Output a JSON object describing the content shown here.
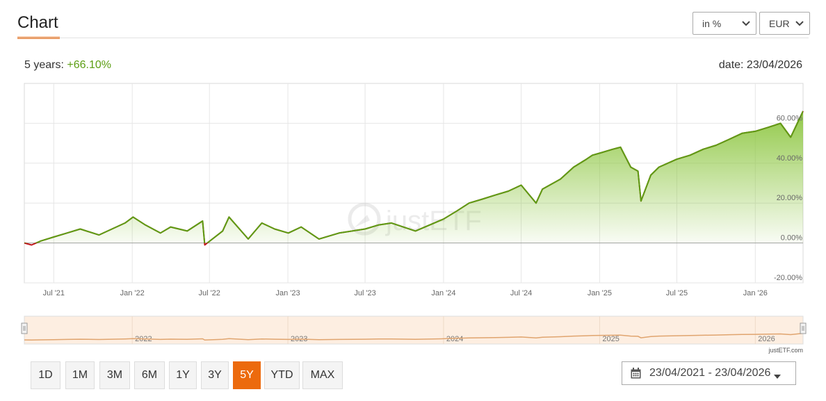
{
  "header": {
    "title": "Chart"
  },
  "controls": {
    "mode_select": "in %",
    "currency_select": "EUR"
  },
  "summary": {
    "period_label": "5 years:",
    "performance": "+66.10%",
    "date_text": "date: 23/04/2026"
  },
  "watermark": "justETF",
  "credit": "justETF.com",
  "range_buttons": [
    "1D",
    "1M",
    "3M",
    "6M",
    "1Y",
    "3Y",
    "5Y",
    "YTD",
    "MAX"
  ],
  "active_range": "5Y",
  "date_range": {
    "text": "23/04/2021 - 23/04/2026"
  },
  "icons": {
    "select_chevron": "chevron-down-icon",
    "calendar": "calendar-icon",
    "caret": "caret-down-icon",
    "watermark_logo": "justetf-logo-icon",
    "navigator_handle": "handle-icon"
  },
  "colors": {
    "accent": "#ec6a0d",
    "line_positive": "#5c9e14",
    "line_negative": "#c0161b",
    "area_fill": "#8cc63f",
    "navigator_fill": "#fdeee1",
    "navigator_line": "#e0a46e"
  },
  "chart_data": {
    "type": "area",
    "title": "",
    "xlabel": "",
    "ylabel": "",
    "y_unit": "%",
    "ylim": [
      -20,
      80
    ],
    "yticks": [
      -20,
      0,
      20,
      40,
      60
    ],
    "ytick_labels": [
      "-20.00%",
      "0.00%",
      "20.00%",
      "40.00%",
      "60.00%"
    ],
    "xlim": [
      "2021-04-23",
      "2026-04-23"
    ],
    "xticks": [
      "2021-07-01",
      "2022-01-01",
      "2022-07-01",
      "2023-01-01",
      "2023-07-01",
      "2024-01-01",
      "2024-07-01",
      "2025-01-01",
      "2025-07-01",
      "2026-01-01"
    ],
    "xtick_labels": [
      "Jul '21",
      "Jan '22",
      "Jul '22",
      "Jan '23",
      "Jul '23",
      "Jan '24",
      "Jul '24",
      "Jan '25",
      "Jul '25",
      "Jan '26"
    ],
    "navigator_labels": [
      "2022",
      "2023",
      "2024",
      "2025",
      "2026"
    ],
    "navigator_ticks": [
      "2022-01-01",
      "2023-01-01",
      "2024-01-01",
      "2025-01-01",
      "2026-01-01"
    ],
    "grid": true,
    "legend": "none",
    "series": [
      {
        "x": [
          "2021-04-23",
          "2021-05-10",
          "2021-06-01",
          "2021-07-01",
          "2021-08-01",
          "2021-09-01",
          "2021-10-15",
          "2021-12-15",
          "2022-01-03",
          "2022-02-01",
          "2022-03-08",
          "2022-04-01",
          "2022-05-10",
          "2022-06-15",
          "2022-06-20",
          "2022-08-01",
          "2022-08-16",
          "2022-09-30",
          "2022-11-01",
          "2022-12-01",
          "2023-01-02",
          "2023-02-01",
          "2023-03-15",
          "2023-05-01",
          "2023-07-01",
          "2023-08-01",
          "2023-09-01",
          "2023-10-27",
          "2024-01-01",
          "2024-02-01",
          "2024-03-01",
          "2024-04-01",
          "2024-05-01",
          "2024-06-01",
          "2024-07-01",
          "2024-08-05",
          "2024-08-20",
          "2024-10-01",
          "2024-11-01",
          "2024-12-01",
          "2024-12-15",
          "2025-01-01",
          "2025-02-01",
          "2025-02-19",
          "2025-03-15",
          "2025-04-01",
          "2025-04-08",
          "2025-05-01",
          "2025-05-20",
          "2025-07-01",
          "2025-08-01",
          "2025-09-01",
          "2025-10-01",
          "2025-11-01",
          "2025-12-01",
          "2026-01-01",
          "2026-02-01",
          "2026-03-01",
          "2026-03-25",
          "2026-04-23"
        ],
        "values": [
          0,
          -1,
          1,
          3,
          5,
          7,
          4,
          10,
          13,
          9,
          5,
          8,
          6,
          11,
          -1,
          6,
          13,
          2,
          10,
          7,
          5,
          8,
          2,
          5,
          7,
          9,
          10,
          6,
          12,
          16,
          20,
          22,
          24,
          26,
          29,
          20,
          27,
          32,
          38,
          42,
          44,
          45,
          47,
          48,
          38,
          36,
          21,
          34,
          38,
          42,
          44,
          47,
          49,
          52,
          55,
          56,
          58,
          60,
          53,
          66.1
        ]
      }
    ]
  }
}
